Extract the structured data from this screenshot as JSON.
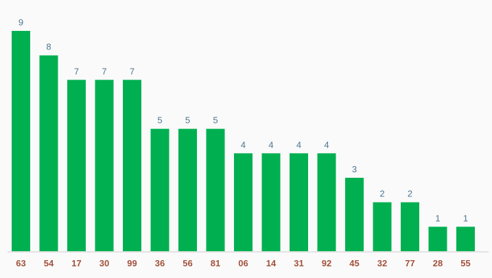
{
  "chart_data": {
    "type": "bar",
    "categories": [
      "63",
      "54",
      "17",
      "30",
      "99",
      "36",
      "56",
      "81",
      "06",
      "14",
      "31",
      "92",
      "45",
      "32",
      "77",
      "28",
      "55"
    ],
    "values": [
      9,
      8,
      7,
      7,
      7,
      5,
      5,
      5,
      4,
      4,
      4,
      4,
      3,
      2,
      2,
      1,
      1
    ],
    "title": "",
    "xlabel": "",
    "ylabel": "",
    "ylim": [
      0,
      9
    ],
    "grid": false,
    "data_labels": true,
    "colors": {
      "bar": "#00b050",
      "value_label": "#4e7690",
      "category_label": "#a3523c",
      "axis": "#cccccc",
      "background": "#fafafa"
    }
  }
}
